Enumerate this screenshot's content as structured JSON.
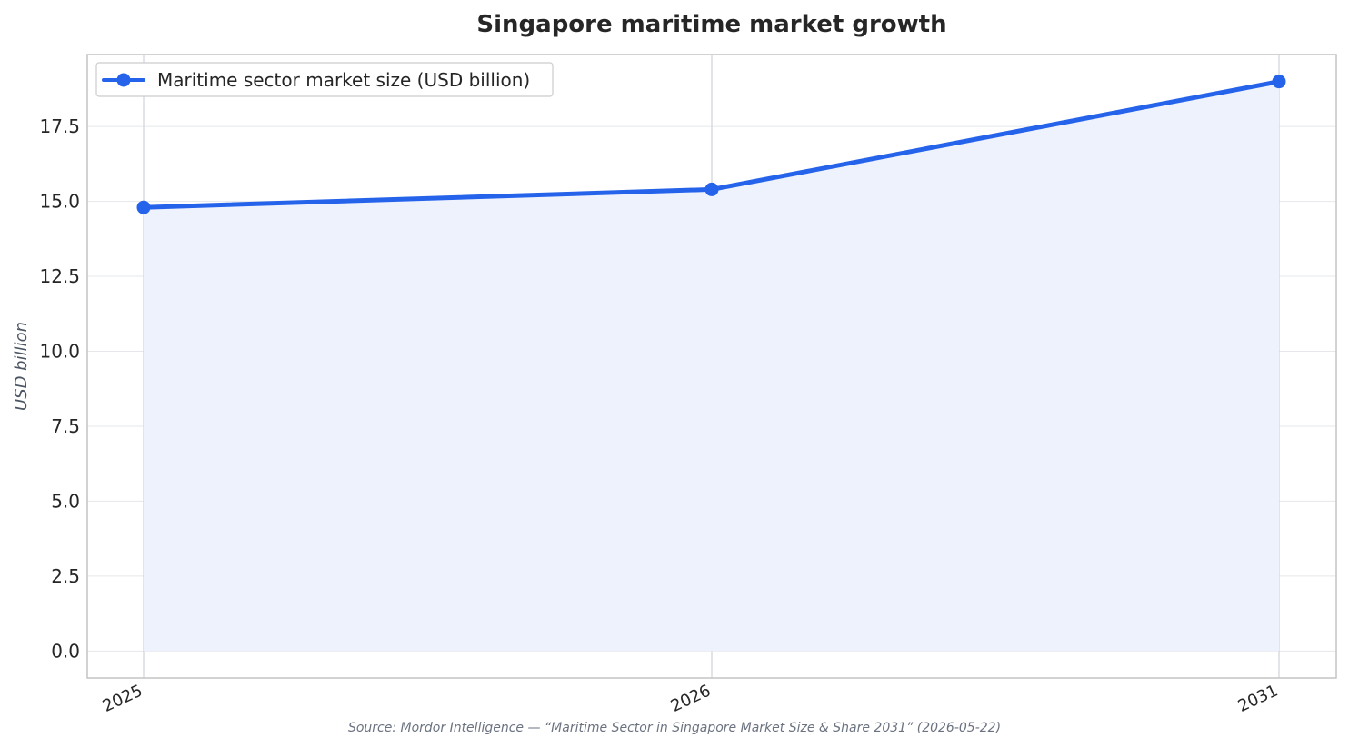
{
  "chart_data": {
    "type": "area",
    "title": "Singapore maritime market growth",
    "xlabel": "",
    "ylabel": "USD billion",
    "categories": [
      "2025",
      "2026",
      "2031"
    ],
    "series": [
      {
        "name": "Maritime sector market size (USD billion)",
        "values": [
          14.8,
          15.4,
          19.0
        ]
      }
    ],
    "ylim": [
      -0.9,
      19.9
    ],
    "yticks": [
      0.0,
      2.5,
      5.0,
      7.5,
      10.0,
      12.5,
      15.0,
      17.5
    ],
    "ytick_labels": [
      "0.0",
      "2.5",
      "5.0",
      "7.5",
      "10.0",
      "12.5",
      "15.0",
      "17.5"
    ],
    "grid": true,
    "legend_position": "top-left",
    "colors": {
      "line": "#2563eb",
      "fill": "#eef2fc",
      "grid": "#e5e7eb",
      "frame": "#c4c4c4"
    },
    "source": "Source: Mordor Intelligence — “Maritime Sector in Singapore Market Size & Share 2031” (2026-05-22)"
  }
}
